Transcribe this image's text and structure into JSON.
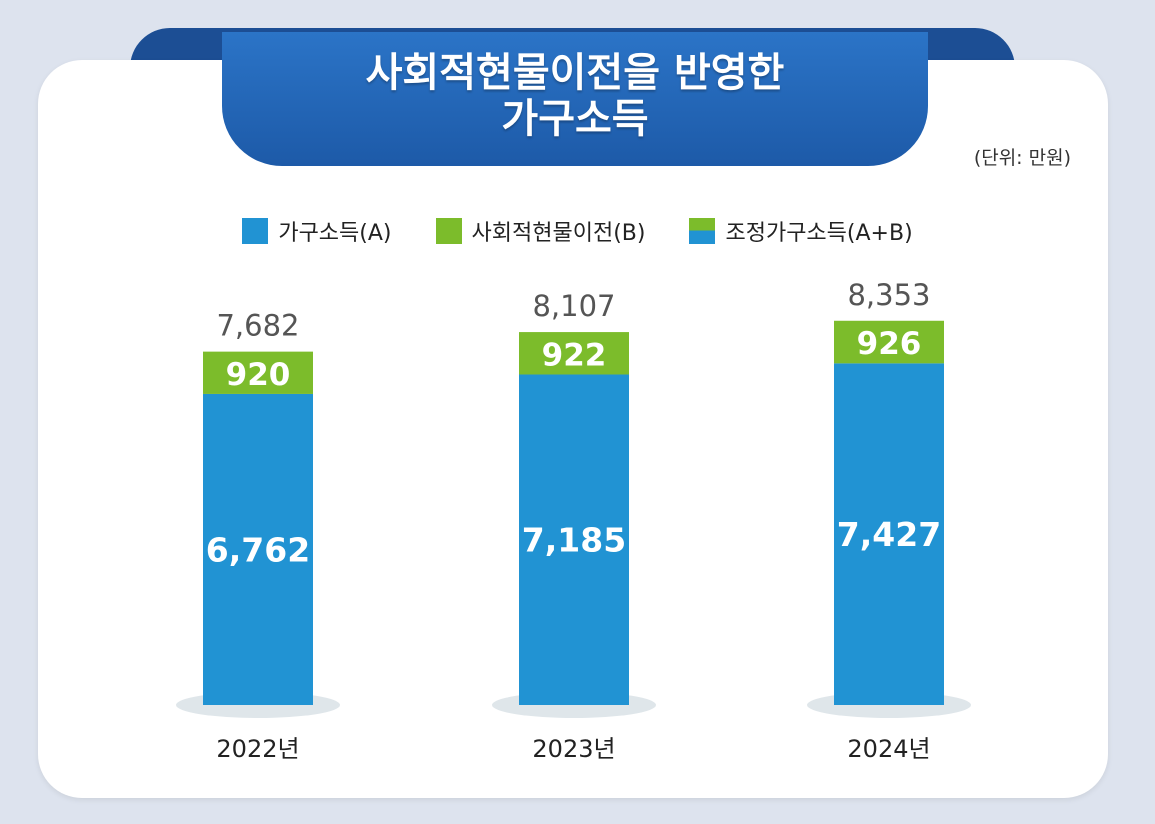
{
  "header": {
    "title_line1": "사회적현물이전을 반영한",
    "title_line2": "가구소득",
    "unit": "(단위: 만원)"
  },
  "colors": {
    "income": "#2193d3",
    "transfer": "#7cbc2b",
    "total_label": "#555555",
    "year_label": "#222222"
  },
  "chart_data": {
    "type": "bar",
    "stacked": true,
    "categories": [
      "2022년",
      "2023년",
      "2024년"
    ],
    "series": [
      {
        "name": "가구소득(A)",
        "values": [
          6762,
          7185,
          7427
        ]
      },
      {
        "name": "사회적현물이전(B)",
        "values": [
          920,
          922,
          926
        ]
      }
    ],
    "totals": [
      7682,
      8107,
      8353
    ],
    "total_labels": [
      "7,682",
      "8,107",
      "8,353"
    ],
    "income_labels": [
      "6,762",
      "7,185",
      "7,427"
    ],
    "transfer_labels": [
      "920",
      "922",
      "926"
    ],
    "legend": [
      "가구소득(A)",
      "사회적현물이전(B)",
      "조정가구소득(A+B)"
    ],
    "legend_position": "top-center",
    "grid": false
  }
}
